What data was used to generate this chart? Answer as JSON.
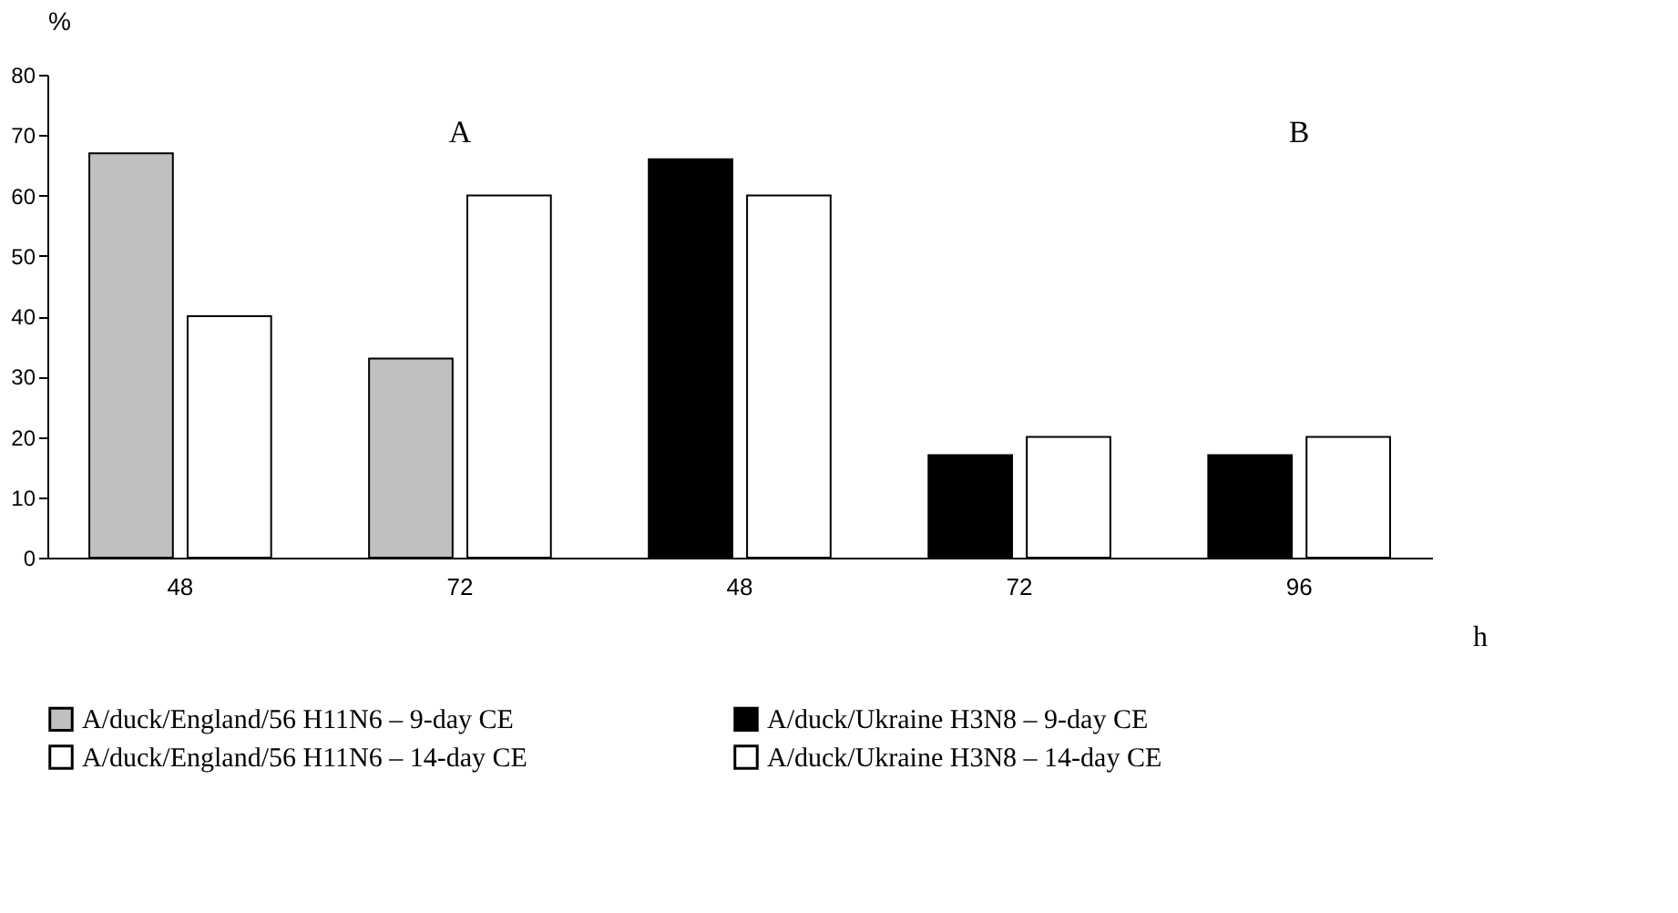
{
  "chart_data": {
    "type": "bar",
    "categories": [
      "48",
      "72",
      "48",
      "72",
      "96"
    ],
    "xlabel": "h",
    "ylabel": "%",
    "series": [
      {
        "name": "A/duck/England/56 H11N6 – 9-day CE",
        "color": "#c0c0c0",
        "values": [
          67,
          33,
          null,
          null,
          null
        ]
      },
      {
        "name": "A/duck/Ukraine H3N8 – 9-day CE",
        "color": "#000000",
        "values": [
          null,
          null,
          66,
          17,
          17
        ]
      },
      {
        "name": "A/duck/England/56 H11N6 – 14-day CE",
        "color": "#ffffff",
        "values": [
          40,
          60,
          null,
          null,
          null
        ]
      },
      {
        "name": "A/duck/Ukraine H3N8 – 14-day CE",
        "color": "#ffffff",
        "values": [
          null,
          null,
          60,
          20,
          20
        ]
      }
    ],
    "ylim": [
      0,
      80
    ],
    "yticks": [
      0,
      10,
      20,
      30,
      40,
      50,
      60,
      70,
      80
    ],
    "grid": false,
    "legend": "bottom",
    "annotations": [
      "A",
      "B"
    ]
  }
}
